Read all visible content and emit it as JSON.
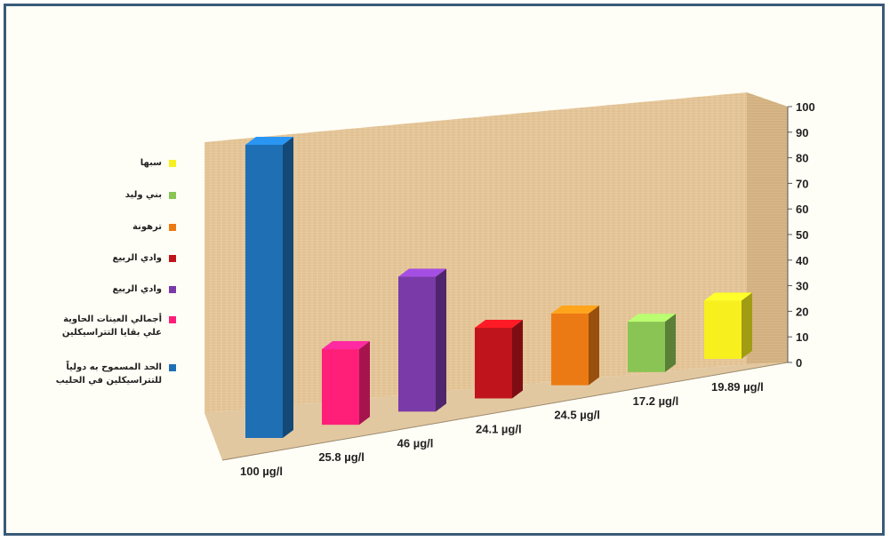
{
  "chart_data": {
    "type": "bar",
    "categories": [
      "100 µg/l",
      "25.8 µg/l",
      "46 µg/l",
      "24.1 µg/l",
      "24.5 µg/l",
      "17.2 µg/l",
      "19.89 µg/l"
    ],
    "values": [
      100,
      25.8,
      46,
      24.1,
      24.5,
      17.2,
      19.89
    ],
    "colors": [
      "#1f6fb5",
      "#ff1f78",
      "#7a3aa8",
      "#c0141c",
      "#ec7a14",
      "#8ac454",
      "#f8f01e"
    ],
    "ylim": [
      0,
      100
    ],
    "yticks": [
      "0",
      "10",
      "20",
      "30",
      "40",
      "50",
      "60",
      "70",
      "80",
      "90",
      "100"
    ],
    "legend": [
      {
        "label": "سبها",
        "color": "#f8f01e"
      },
      {
        "label": "بني وليد",
        "color": "#8ac454"
      },
      {
        "label": "ترهونة",
        "color": "#ec7a14"
      },
      {
        "label": "وادي الربيع",
        "color": "#c0141c"
      },
      {
        "label": "وادي الربيع",
        "color": "#7a3aa8"
      },
      {
        "label": "أجمالي العينات الحاوية علي بقايا التتراسيكلين",
        "color": "#ff1f78"
      },
      {
        "label": "الحد المسموح به دولياً للتتراسيكلين في الحليب",
        "color": "#1f6fb5"
      }
    ],
    "legend_position": "left",
    "grid": false,
    "style": "3d"
  }
}
